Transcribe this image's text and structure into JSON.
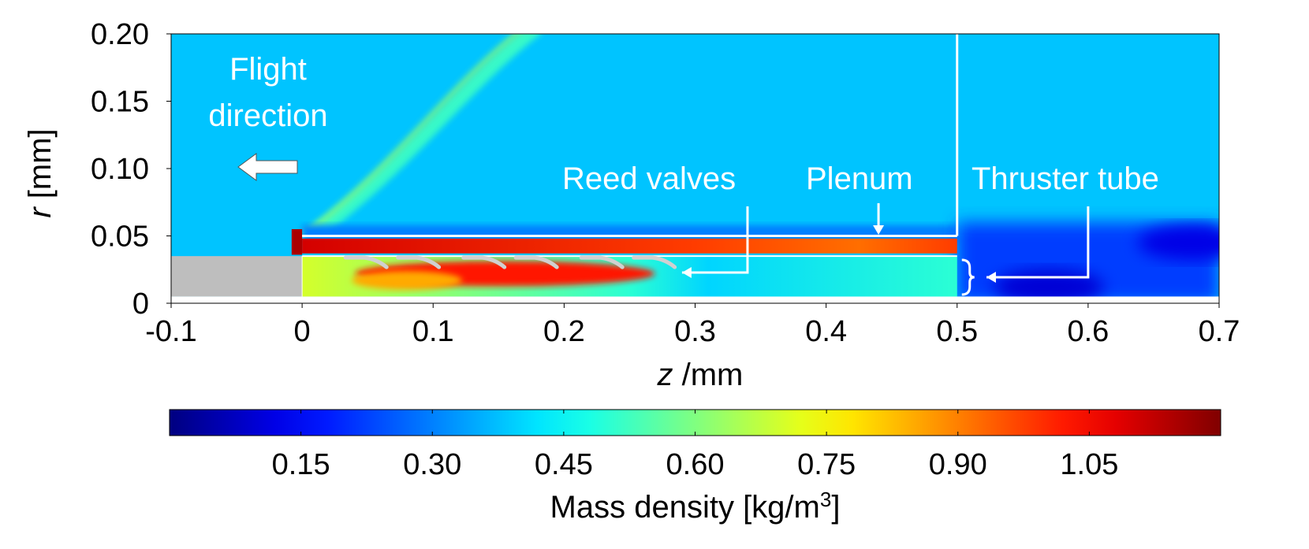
{
  "chart_data": {
    "type": "heatmap",
    "title": "",
    "xlabel": {
      "italic": "z",
      "rest": " /mm"
    },
    "ylabel": {
      "italic": "r",
      "rest": " [mm]"
    },
    "xlim": [
      -0.1,
      0.7
    ],
    "ylim": [
      0,
      0.2
    ],
    "x_ticks": [
      -0.1,
      0,
      0.1,
      0.2,
      0.3,
      0.4,
      0.5,
      0.6,
      0.7
    ],
    "x_tick_labels": [
      "-0.1",
      "0",
      "0.1",
      "0.2",
      "0.3",
      "0.4",
      "0.5",
      "0.6",
      "0.7"
    ],
    "y_ticks": [
      0,
      0.05,
      0.1,
      0.15,
      0.2
    ],
    "y_tick_labels": [
      "0",
      "0.05",
      "0.10",
      "0.15",
      "0.20"
    ],
    "annotations": {
      "flight_line1": "Flight",
      "flight_line2": "direction",
      "reed_valves": "Reed valves",
      "plenum": "Plenum",
      "thruster_tube": "Thruster tube"
    },
    "colorbar": {
      "label": "Mass density [kg/m",
      "label_sup": "3",
      "label_end": "]",
      "min": 0.0,
      "max": 1.2,
      "ticks": [
        0.15,
        0.3,
        0.45,
        0.6,
        0.75,
        0.9,
        1.05
      ],
      "tick_labels": [
        "0.15",
        "0.30",
        "0.45",
        "0.60",
        "0.75",
        "0.90",
        "1.05"
      ],
      "colormap": "jet"
    },
    "regions": {
      "free_stream_density": 0.38,
      "plenum_density": 0.98,
      "valve_zone_density": 1.02,
      "tube_downstream_density": 0.42,
      "wake_min_density": 0.1,
      "stagnation_density": 1.15
    },
    "geometry_labels": {
      "plenum_end_z": 0.5,
      "body_top_r": 0.035,
      "valve_z_positions": [
        0.05,
        0.09,
        0.14,
        0.18,
        0.23,
        0.27
      ]
    }
  },
  "colors": {
    "background": "#ffffff",
    "free_stream": "#00c0f0",
    "body_gray": "#bebebe",
    "annotation_white": "#ffffff"
  }
}
